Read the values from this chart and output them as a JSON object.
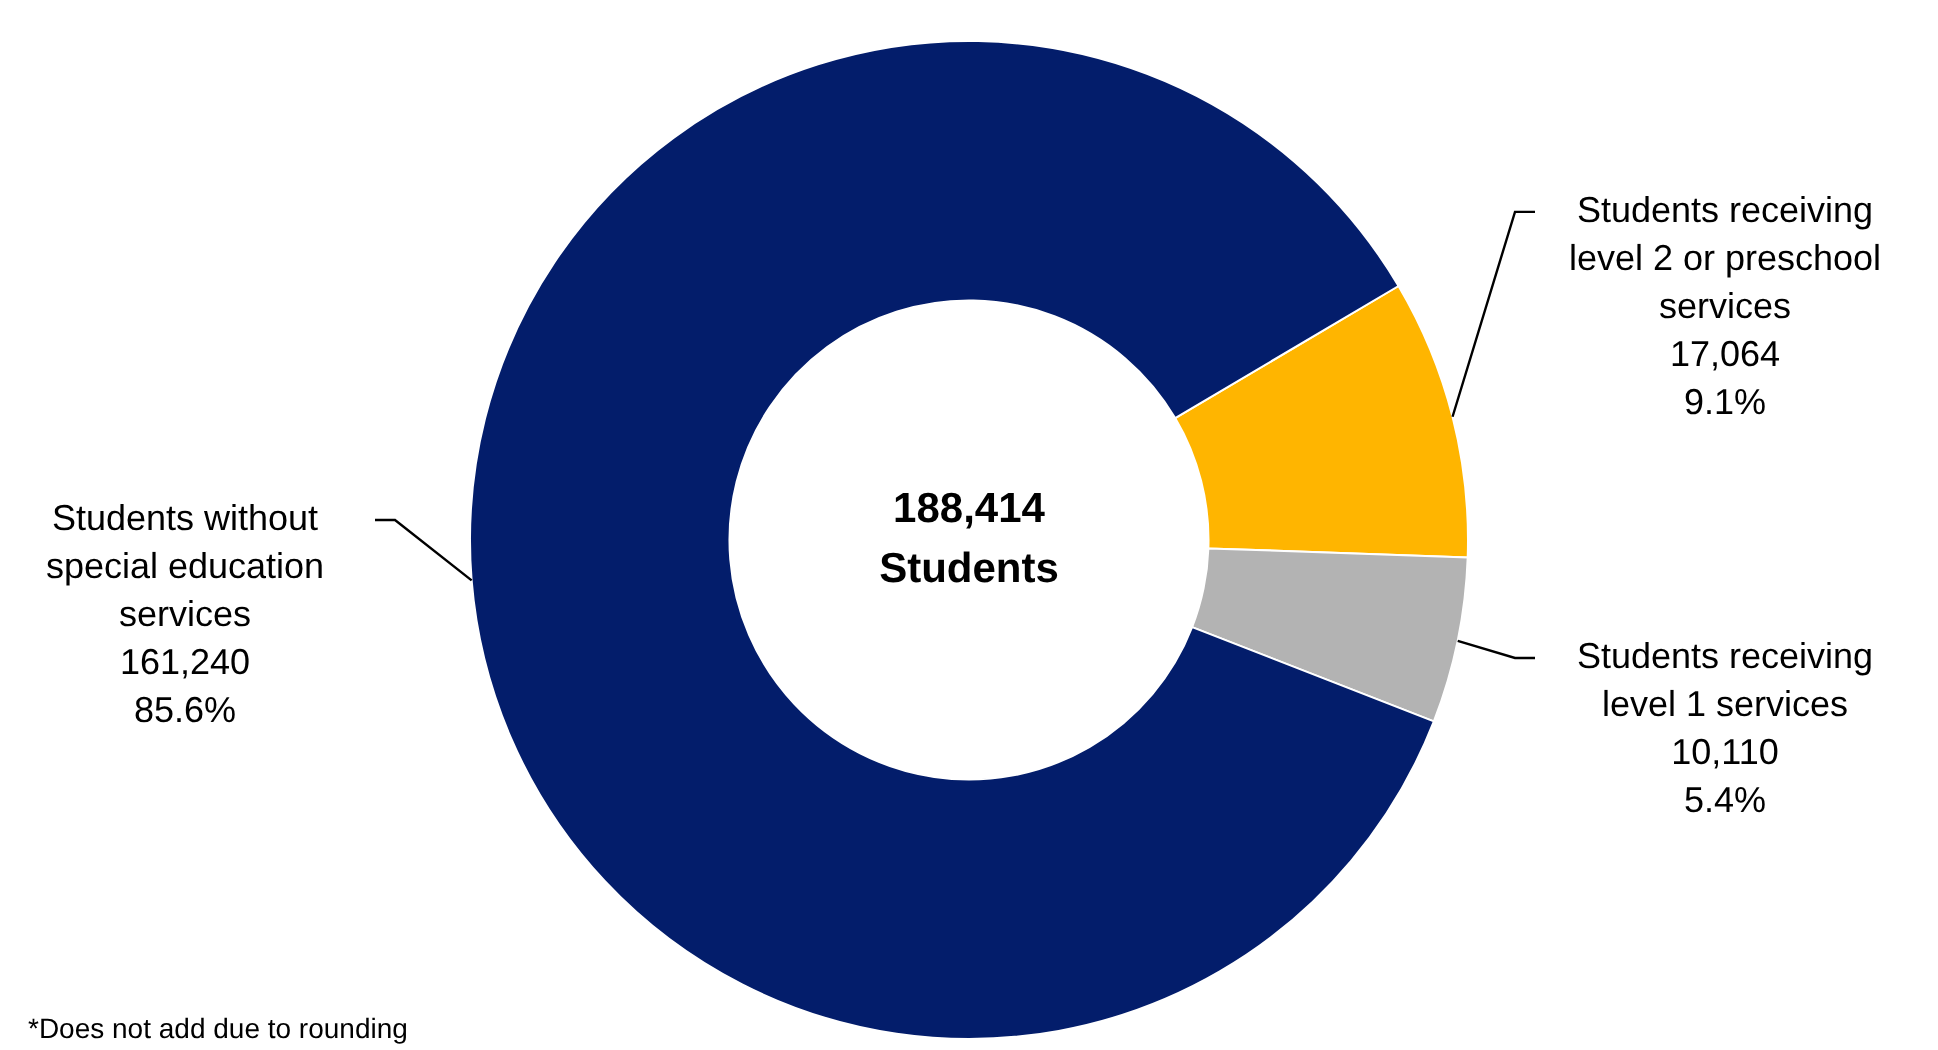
{
  "chart_data": {
    "type": "donut",
    "categories": [
      "Students receiving level 2 or preschool services",
      "Students receiving level 1 services",
      "Students without special education services"
    ],
    "values": [
      17064,
      10110,
      161240
    ],
    "colors": [
      "#ffb500",
      "#b3b3b3",
      "#031d6b"
    ],
    "value_labels": [
      "17,064\n9.1%",
      "10,110\n5.4%",
      "161,240\n85.6%"
    ],
    "annotations": [
      "188,414\nStudents",
      "*Does not add due to rounding"
    ],
    "legend": false
  }
}
